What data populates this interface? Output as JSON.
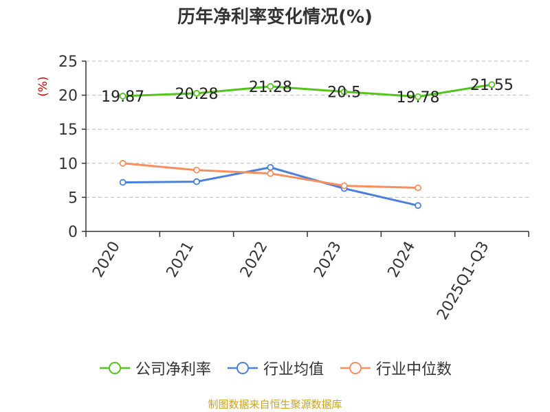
{
  "chart_data": {
    "type": "line",
    "title": "历年净利率变化情况(%)",
    "ylabel": "(%)",
    "xlabel": "",
    "categories": [
      "2020",
      "2021",
      "2022",
      "2023",
      "2024",
      "2025Q1-Q3"
    ],
    "ylim": [
      0,
      25
    ],
    "yticks": [
      0,
      5,
      10,
      15,
      20,
      25
    ],
    "grid": true,
    "legend_position": "bottom",
    "series": [
      {
        "name": "公司净利率",
        "color": "#52c41a",
        "values": [
          19.87,
          20.28,
          21.28,
          20.5,
          19.78,
          21.55
        ],
        "labels": [
          "19.87",
          "20.28",
          "21.28",
          "20.5",
          "19.78",
          "21.55"
        ]
      },
      {
        "name": "行业均值",
        "color": "#4a7fdc",
        "values": [
          7.2,
          7.3,
          9.4,
          6.3,
          3.8,
          null
        ]
      },
      {
        "name": "行业中位数",
        "color": "#f58f5c",
        "values": [
          10.0,
          9.0,
          8.5,
          6.7,
          6.4,
          null
        ]
      }
    ]
  },
  "footer": {
    "source": "制图数据来自恒生聚源数据库"
  }
}
